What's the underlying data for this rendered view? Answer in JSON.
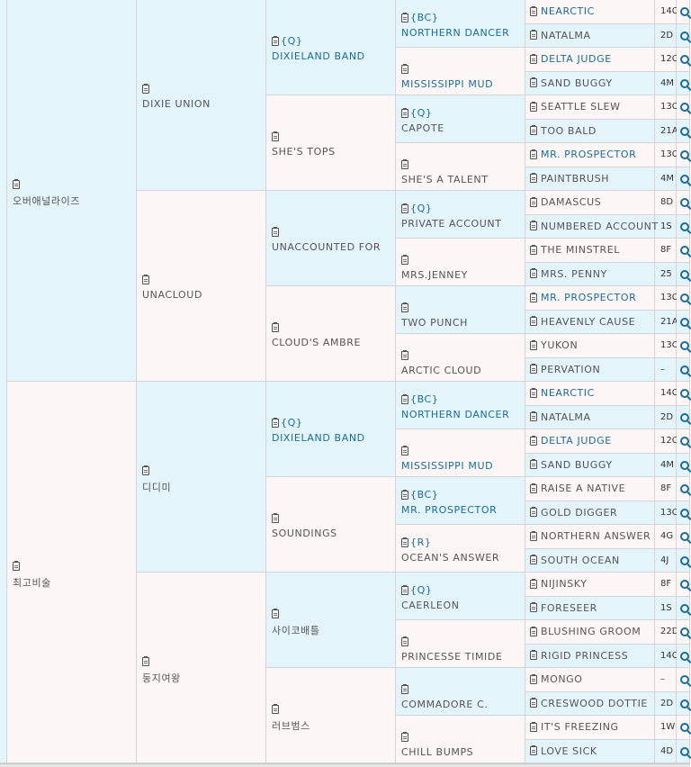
{
  "colors": {
    "left_bg": "#e3f4fb",
    "right_bg": "#fdf6f6",
    "link": "#1a6d98"
  },
  "pedigree": {
    "gen1": [
      {
        "name": "오버애널라이즈",
        "link": false
      },
      {
        "name": "최고비술",
        "link": false
      }
    ],
    "gen2": [
      {
        "name": "DIXIE UNION",
        "link": false
      },
      {
        "name": "UNACLOUD",
        "link": false
      },
      {
        "name": "디디미",
        "link": false
      },
      {
        "name": "둥지여왕",
        "link": false
      }
    ],
    "gen3": [
      {
        "name": "DIXIELAND BAND",
        "tag": "{Q}",
        "link": true
      },
      {
        "name": "SHE'S TOPS",
        "link": false
      },
      {
        "name": "UNACCOUNTED FOR",
        "link": false
      },
      {
        "name": "CLOUD'S AMBRE",
        "link": false
      },
      {
        "name": "DIXIELAND BAND",
        "tag": "{Q}",
        "link": true
      },
      {
        "name": "SOUNDINGS",
        "link": false
      },
      {
        "name": "사이코배틀",
        "link": false
      },
      {
        "name": "러브범스",
        "link": false
      }
    ],
    "gen4": [
      {
        "name": "NORTHERN DANCER",
        "tag": "{BC}",
        "link": true
      },
      {
        "name": "MISSISSIPPI MUD",
        "link": true
      },
      {
        "name": "CAPOTE",
        "tag": "{Q}",
        "link": false
      },
      {
        "name": "SHE'S A TALENT",
        "link": false
      },
      {
        "name": "PRIVATE ACCOUNT",
        "tag": "{Q}",
        "link": false
      },
      {
        "name": "MRS.JENNEY",
        "link": false
      },
      {
        "name": "TWO PUNCH",
        "link": false
      },
      {
        "name": "ARCTIC CLOUD",
        "link": false
      },
      {
        "name": "NORTHERN DANCER",
        "tag": "{BC}",
        "link": true
      },
      {
        "name": "MISSISSIPPI MUD",
        "link": true
      },
      {
        "name": "MR. PROSPECTOR",
        "tag": "{BC}",
        "link": true
      },
      {
        "name": "OCEAN'S ANSWER",
        "tag": "{R}",
        "link": false
      },
      {
        "name": "CAERLEON",
        "tag": "{Q}",
        "link": false
      },
      {
        "name": "PRINCESSE TIMIDE",
        "link": false
      },
      {
        "name": "COMMADORE C.",
        "link": false
      },
      {
        "name": "CHILL BUMPS",
        "link": false
      }
    ],
    "gen5": [
      {
        "name": "NEARCTIC",
        "code": "14C",
        "link": true
      },
      {
        "name": "NATALMA",
        "code": "2D",
        "link": false
      },
      {
        "name": "DELTA JUDGE",
        "code": "12C",
        "link": true
      },
      {
        "name": "SAND BUGGY",
        "code": "4M",
        "link": false
      },
      {
        "name": "SEATTLE SLEW",
        "code": "13C",
        "link": false
      },
      {
        "name": "TOO BALD",
        "code": "21A",
        "link": false
      },
      {
        "name": "MR. PROSPECTOR",
        "code": "13C",
        "link": true
      },
      {
        "name": "PAINTBRUSH",
        "code": "4M",
        "link": false
      },
      {
        "name": "DAMASCUS",
        "code": "8D",
        "link": false
      },
      {
        "name": "NUMBERED ACCOUNT",
        "code": "1S",
        "link": false
      },
      {
        "name": "THE MINSTREL",
        "code": "8F",
        "link": false
      },
      {
        "name": "MRS. PENNY",
        "code": "25",
        "link": false
      },
      {
        "name": "MR. PROSPECTOR",
        "code": "13C",
        "link": true
      },
      {
        "name": "HEAVENLY CAUSE",
        "code": "21A",
        "link": false
      },
      {
        "name": "YUKON",
        "code": "13C",
        "link": false
      },
      {
        "name": "PERVATION",
        "code": "–",
        "link": false
      },
      {
        "name": "NEARCTIC",
        "code": "14C",
        "link": true
      },
      {
        "name": "NATALMA",
        "code": "2D",
        "link": false
      },
      {
        "name": "DELTA JUDGE",
        "code": "12C",
        "link": true
      },
      {
        "name": "SAND BUGGY",
        "code": "4M",
        "link": false
      },
      {
        "name": "RAISE A NATIVE",
        "code": "8F",
        "link": false
      },
      {
        "name": "GOLD DIGGER",
        "code": "13C",
        "link": false
      },
      {
        "name": "NORTHERN ANSWER",
        "code": "4G",
        "link": false
      },
      {
        "name": "SOUTH OCEAN",
        "code": "4J",
        "link": false
      },
      {
        "name": "NIJINSKY",
        "code": "8F",
        "link": false
      },
      {
        "name": "FORESEER",
        "code": "1S",
        "link": false
      },
      {
        "name": "BLUSHING GROOM",
        "code": "22D",
        "link": false
      },
      {
        "name": "RIGID PRINCESS",
        "code": "14C",
        "link": false
      },
      {
        "name": "MONGO",
        "code": "–",
        "link": false
      },
      {
        "name": "CRESWOOD DOTTIE",
        "code": "2D",
        "link": false
      },
      {
        "name": "IT'S FREEZING",
        "code": "1W",
        "link": false
      },
      {
        "name": "LOVE SICK",
        "code": "4D",
        "link": false
      }
    ]
  }
}
